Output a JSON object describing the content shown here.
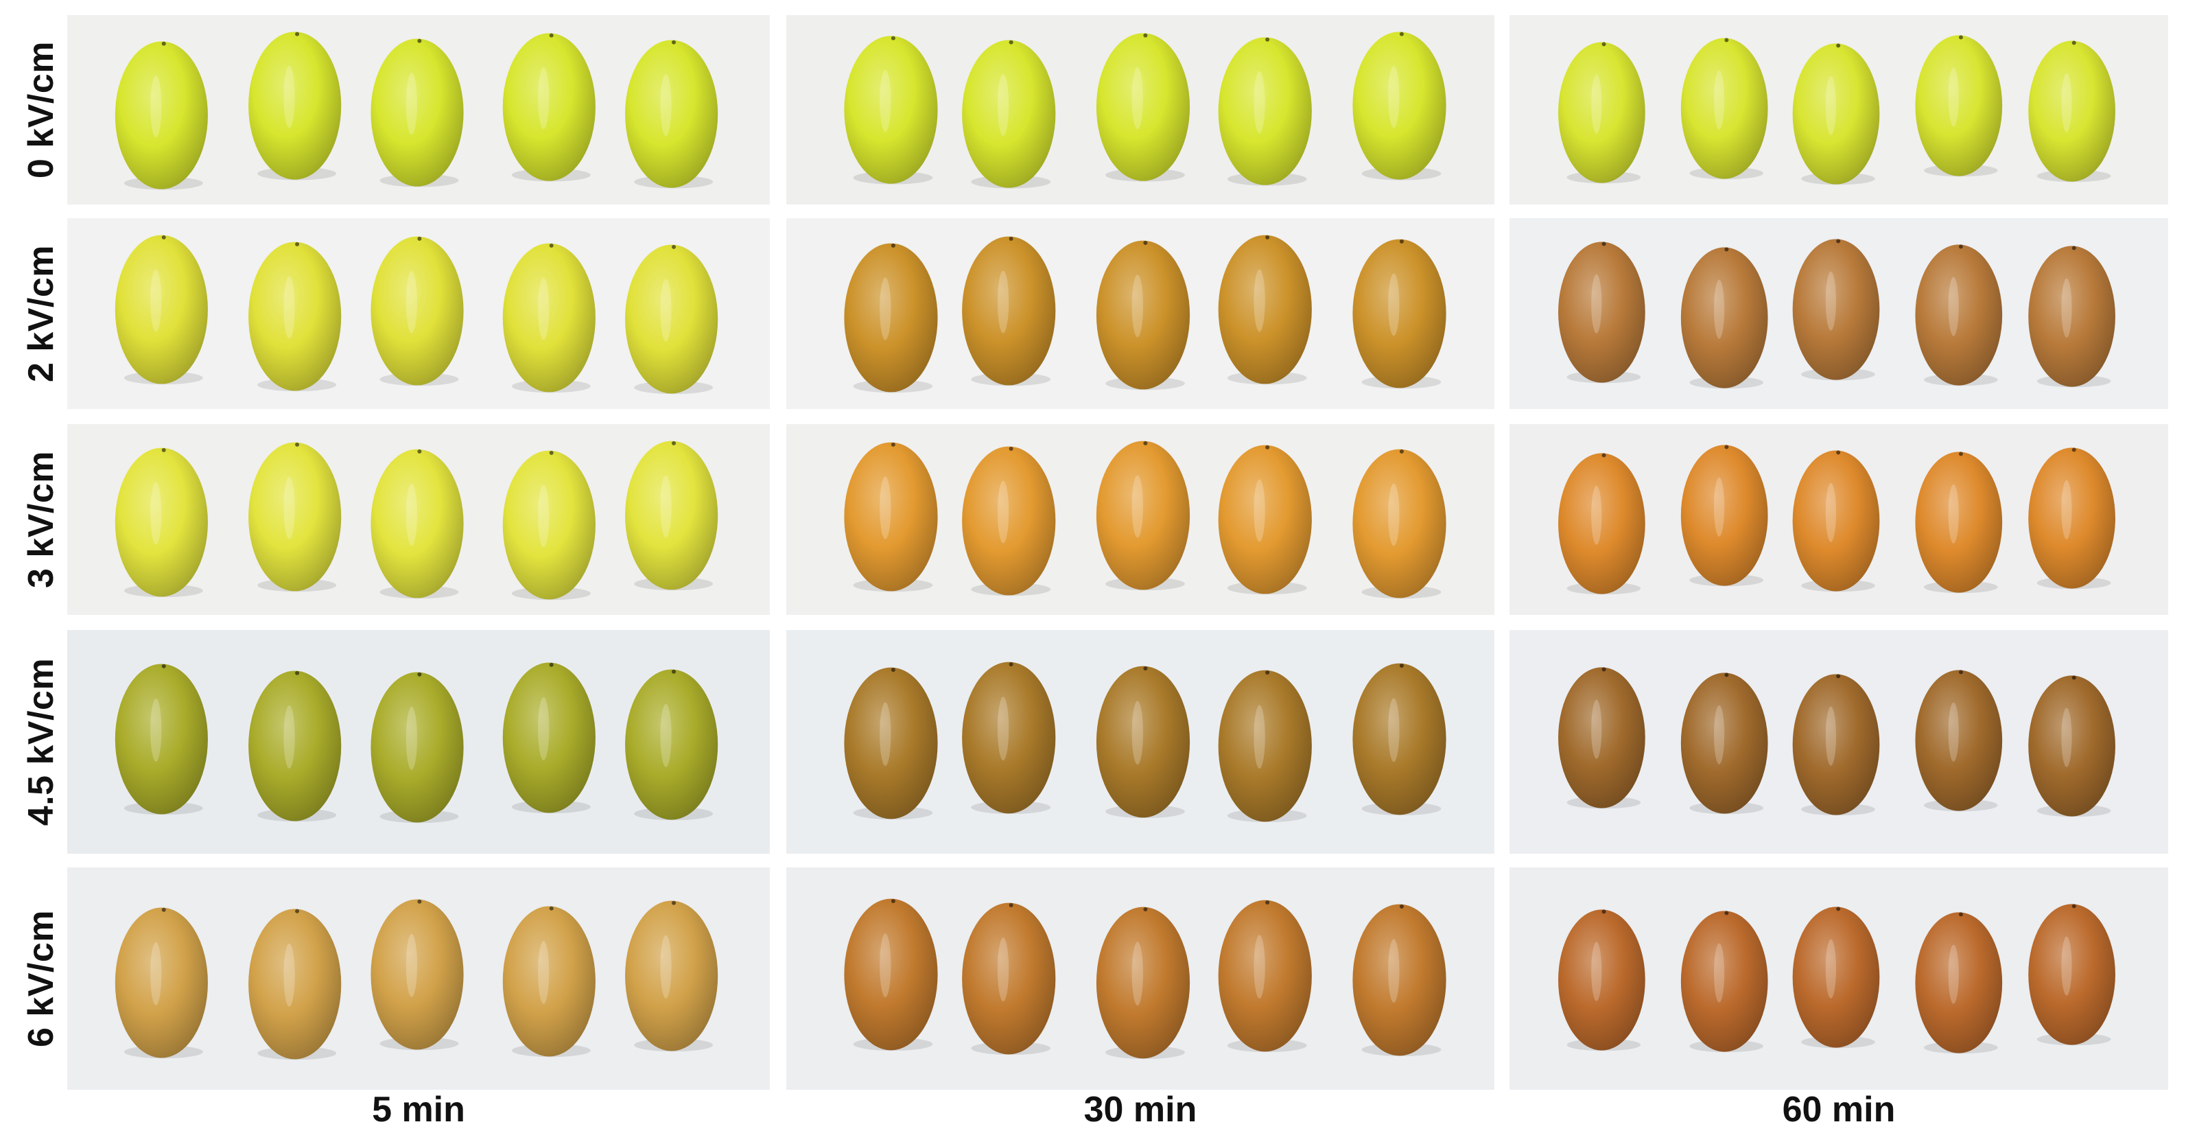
{
  "row_labels": [
    "0 kV/cm",
    "2 kV/cm",
    "3 kV/cm",
    "4.5 kV/cm",
    "6 kV/cm"
  ],
  "col_labels": [
    "5 min",
    "30 min",
    "60 min"
  ],
  "grape_colors": [
    [
      "#d7e62e",
      "#d7e62e",
      "#d8e531"
    ],
    [
      "#e1e13a",
      "#cc922a",
      "#b87a3a"
    ],
    [
      "#e3e43e",
      "#e39a30",
      "#de8a2c"
    ],
    [
      "#a9ac2a",
      "#a97a2a",
      "#a06a2c"
    ],
    [
      "#d2a24a",
      "#c17a2e",
      "#bb6a2c"
    ]
  ],
  "panel_backgrounds": [
    [
      "#f0f0ef",
      "#efefee",
      "#f0f0ef"
    ],
    [
      "#f1f2f1",
      "#f1f2f1",
      "#eef0f2"
    ],
    [
      "#f0f0ef",
      "#f0f0ef",
      "#efefef"
    ],
    [
      "#e9ecef",
      "#ebeef1",
      "#eceef1"
    ],
    [
      "#eceef0",
      "#eceef0",
      "#eceef0"
    ]
  ]
}
